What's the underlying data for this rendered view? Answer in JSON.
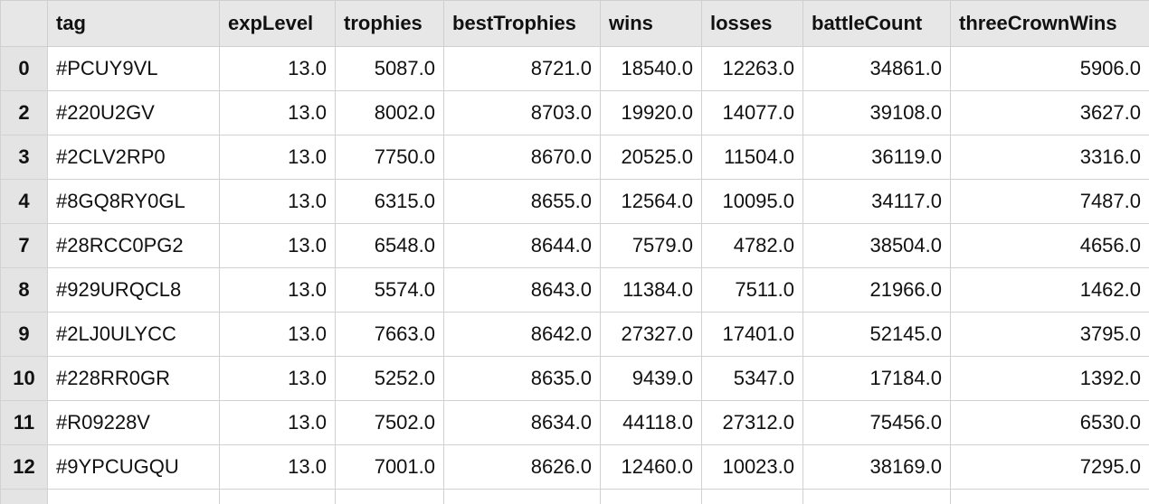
{
  "table": {
    "columns": [
      "tag",
      "expLevel",
      "trophies",
      "bestTrophies",
      "wins",
      "losses",
      "battleCount",
      "threeCrownWins"
    ],
    "rows": [
      {
        "index": "0",
        "cells": [
          "#PCUY9VL",
          "13.0",
          "5087.0",
          "8721.0",
          "18540.0",
          "12263.0",
          "34861.0",
          "5906.0"
        ]
      },
      {
        "index": "2",
        "cells": [
          "#220U2GV",
          "13.0",
          "8002.0",
          "8703.0",
          "19920.0",
          "14077.0",
          "39108.0",
          "3627.0"
        ]
      },
      {
        "index": "3",
        "cells": [
          "#2CLV2RP0",
          "13.0",
          "7750.0",
          "8670.0",
          "20525.0",
          "11504.0",
          "36119.0",
          "3316.0"
        ]
      },
      {
        "index": "4",
        "cells": [
          "#8GQ8RY0GL",
          "13.0",
          "6315.0",
          "8655.0",
          "12564.0",
          "10095.0",
          "34117.0",
          "7487.0"
        ]
      },
      {
        "index": "7",
        "cells": [
          "#28RCC0PG2",
          "13.0",
          "6548.0",
          "8644.0",
          "7579.0",
          "4782.0",
          "38504.0",
          "4656.0"
        ]
      },
      {
        "index": "8",
        "cells": [
          "#929URQCL8",
          "13.0",
          "5574.0",
          "8643.0",
          "11384.0",
          "7511.0",
          "21966.0",
          "1462.0"
        ]
      },
      {
        "index": "9",
        "cells": [
          "#2LJ0ULYCC",
          "13.0",
          "7663.0",
          "8642.0",
          "27327.0",
          "17401.0",
          "52145.0",
          "3795.0"
        ]
      },
      {
        "index": "10",
        "cells": [
          "#228RR0GR",
          "13.0",
          "5252.0",
          "8635.0",
          "9439.0",
          "5347.0",
          "17184.0",
          "1392.0"
        ]
      },
      {
        "index": "11",
        "cells": [
          "#R09228V",
          "13.0",
          "7502.0",
          "8634.0",
          "44118.0",
          "27312.0",
          "75456.0",
          "6530.0"
        ]
      },
      {
        "index": "12",
        "cells": [
          "#9YPCUGQU",
          "13.0",
          "7001.0",
          "8626.0",
          "12460.0",
          "10023.0",
          "38169.0",
          "7295.0"
        ]
      }
    ]
  }
}
